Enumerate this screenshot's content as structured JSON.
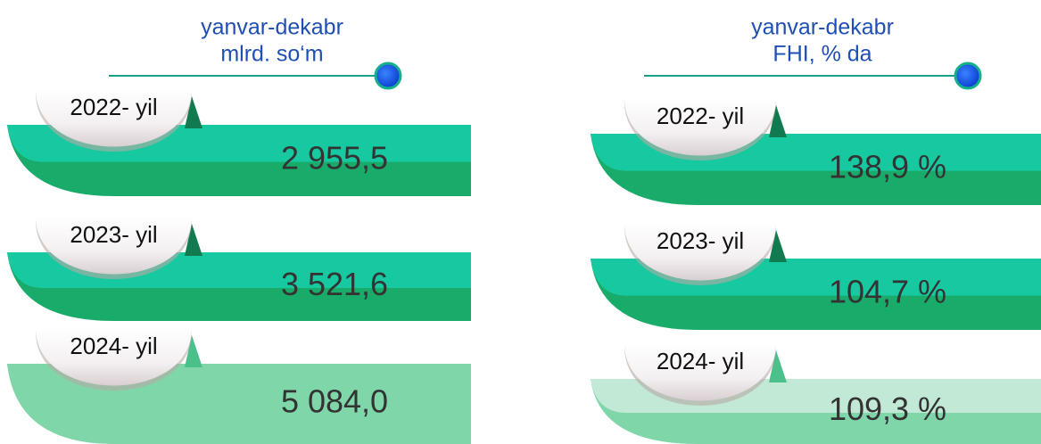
{
  "panels": [
    {
      "header": [
        "yanvar-dekabr",
        "mlrd. so‘m"
      ],
      "rows": [
        {
          "year": "2022- yil",
          "value": "2 955,5"
        },
        {
          "year": "2023- yil",
          "value": "3 521,6"
        },
        {
          "year": "2024- yil",
          "value": "5 084,0"
        }
      ]
    },
    {
      "header": [
        "yanvar-dekabr",
        "FHI, % da"
      ],
      "rows": [
        {
          "year": "2022- yil",
          "value": "138,9 %"
        },
        {
          "year": "2023- yil",
          "value": "104,7 %"
        },
        {
          "year": "2024- yil",
          "value": "109,3 %"
        }
      ]
    }
  ]
}
